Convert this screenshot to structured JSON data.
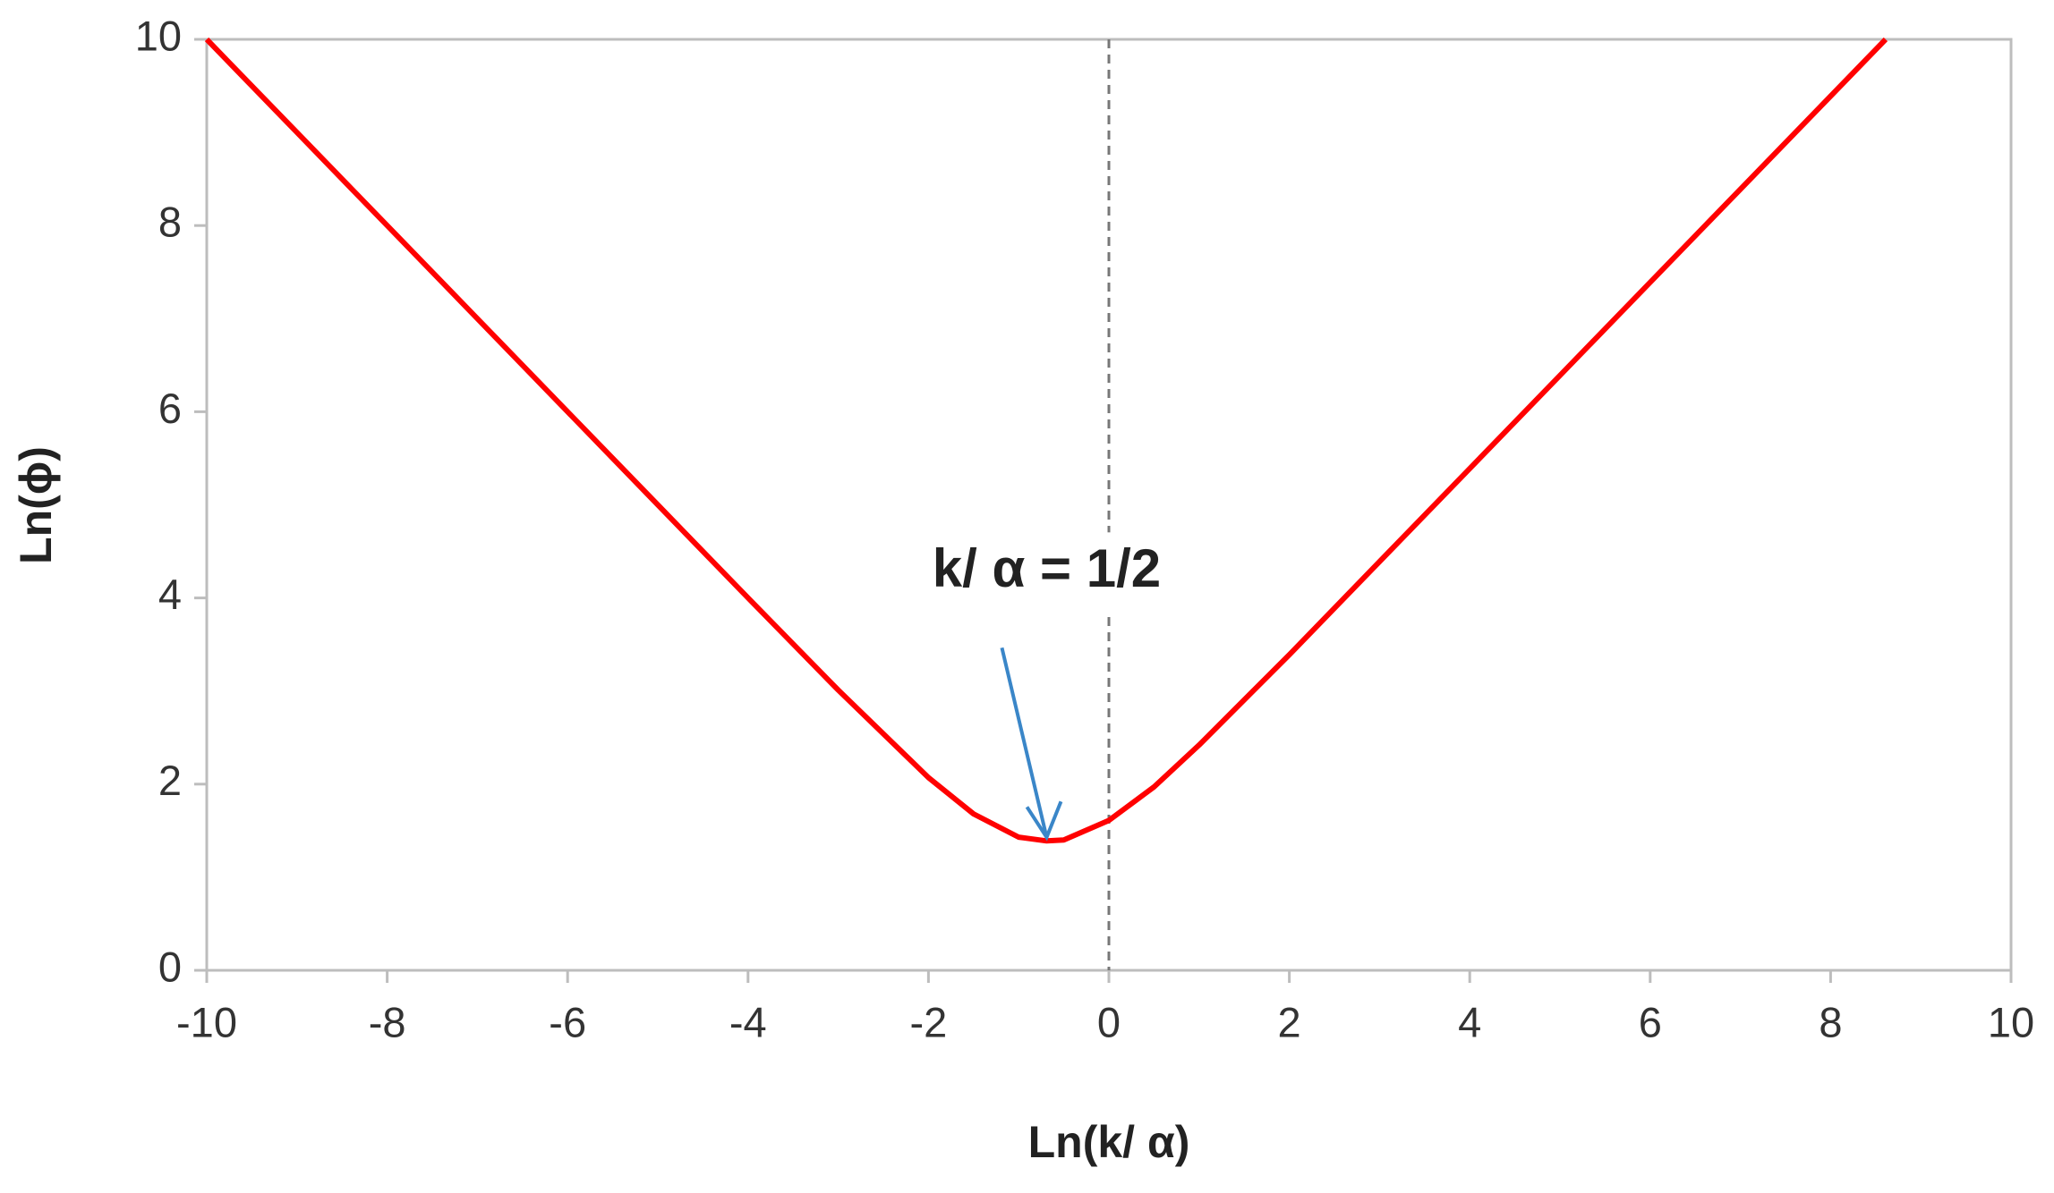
{
  "chart_data": {
    "type": "line",
    "x": [
      -10,
      -9,
      -8,
      -7,
      -6,
      -5,
      -4,
      -3,
      -2,
      -1.5,
      -1,
      -0.69,
      -0.5,
      0,
      0.5,
      1,
      2,
      3,
      4,
      5,
      6,
      7,
      8,
      8.61
    ],
    "series": [
      {
        "color": "#ff0000",
        "values": [
          10.0,
          9.0,
          8.0,
          7.0,
          6.0,
          5.0,
          4.0,
          3.01,
          2.07,
          1.68,
          1.43,
          1.39,
          1.4,
          1.61,
          1.97,
          2.42,
          3.39,
          4.39,
          5.39,
          6.39,
          7.39,
          8.39,
          9.39,
          10.0
        ]
      }
    ],
    "xlim": [
      -10,
      10
    ],
    "ylim": [
      0,
      10
    ],
    "xticks": [
      -10,
      -8,
      -6,
      -4,
      -2,
      0,
      2,
      4,
      6,
      8,
      10
    ],
    "yticks": [
      0,
      2,
      4,
      6,
      8,
      10
    ],
    "xlabel": "Ln(k/ α)",
    "ylabel": "Ln(ϕ)",
    "vline_x": 0,
    "annotation": {
      "text": "k/ α = 1/2",
      "x": -0.69,
      "y": 1.39
    },
    "grid": false
  }
}
